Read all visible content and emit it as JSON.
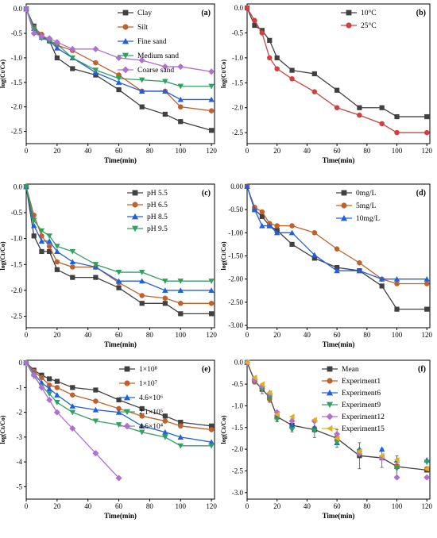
{
  "chart_data": [
    {
      "type": "line",
      "panel_label": "(a)",
      "xlabel": "Time(min)",
      "ylabel": "log(Ct/Co)",
      "xlim": [
        0,
        122
      ],
      "ylim": [
        -2.75,
        0.1
      ],
      "xticks": [
        "0",
        "20",
        "40",
        "60",
        "80",
        "100",
        "120"
      ],
      "yticks": [
        "0.0",
        "-0.5",
        "-1.0",
        "-1.5",
        "-2.0",
        "-2.5"
      ],
      "legend": "top-right",
      "x": [
        0,
        5,
        10,
        15,
        20,
        30,
        45,
        60,
        75,
        90,
        100,
        120
      ],
      "series": [
        {
          "name": "Clay",
          "color": "#404040",
          "marker": "square",
          "values": [
            0,
            -0.35,
            -0.55,
            -0.65,
            -1.0,
            -1.22,
            -1.35,
            -1.65,
            -2.0,
            -2.15,
            -2.3,
            -2.48
          ]
        },
        {
          "name": "Silt",
          "color": "#c0602a",
          "marker": "circle",
          "values": [
            0,
            -0.38,
            -0.52,
            -0.66,
            -0.74,
            -0.85,
            -1.1,
            -1.35,
            -1.68,
            -1.68,
            -2.0,
            -2.08
          ]
        },
        {
          "name": "Fine sand",
          "color": "#2060e0",
          "marker": "triangle",
          "values": [
            0,
            -0.4,
            -0.58,
            -0.65,
            -0.8,
            -1.0,
            -1.3,
            -1.5,
            -1.68,
            -1.68,
            -1.85,
            -1.85
          ]
        },
        {
          "name": "Medium sand",
          "color": "#30a060",
          "marker": "triangle-down",
          "values": [
            0,
            -0.42,
            -0.6,
            -0.65,
            -0.72,
            -1.0,
            -1.25,
            -1.42,
            -1.45,
            -1.48,
            -1.58,
            -1.58
          ]
        },
        {
          "name": "Coarse sand",
          "color": "#b070d0",
          "marker": "diamond",
          "values": [
            0,
            -0.5,
            -0.56,
            -0.6,
            -0.68,
            -0.82,
            -0.82,
            -1.0,
            -1.05,
            -1.18,
            -1.18,
            -1.28
          ]
        }
      ]
    },
    {
      "type": "line",
      "panel_label": "(b)",
      "xlabel": "Time(min)",
      "ylabel": "log(Ct/Co)",
      "xlim": [
        0,
        122
      ],
      "ylim": [
        -2.72,
        0.08
      ],
      "xticks": [
        "0",
        "20",
        "40",
        "60",
        "80",
        "100",
        "120"
      ],
      "yticks": [
        "0.0",
        "-0.5",
        "-1.0",
        "-1.5",
        "-2.0",
        "-2.5"
      ],
      "legend": "top-right",
      "x": [
        0,
        5,
        10,
        15,
        20,
        30,
        45,
        60,
        75,
        90,
        100,
        120
      ],
      "series": [
        {
          "name": "10°C",
          "color": "#404040",
          "marker": "square",
          "values": [
            0,
            -0.35,
            -0.45,
            -0.65,
            -1.0,
            -1.25,
            -1.32,
            -1.65,
            -2.0,
            -2.0,
            -2.18,
            -2.18
          ]
        },
        {
          "name": "25°C",
          "color": "#d04040",
          "marker": "circle",
          "values": [
            0,
            -0.25,
            -0.5,
            -1.0,
            -1.22,
            -1.42,
            -1.68,
            -2.0,
            -2.15,
            -2.32,
            -2.5,
            -2.5
          ]
        }
      ]
    },
    {
      "type": "line",
      "panel_label": "(c)",
      "xlabel": "Time(min)",
      "ylabel": "log(Ct/Co)",
      "xlim": [
        0,
        122
      ],
      "ylim": [
        -2.72,
        0.05
      ],
      "xticks": [
        "0",
        "20",
        "40",
        "60",
        "80",
        "100",
        "120"
      ],
      "yticks": [
        "0.0",
        "-0.5",
        "-1.0",
        "-1.5",
        "-2.0",
        "-2.5"
      ],
      "legend": "top-right",
      "x": [
        0,
        5,
        10,
        15,
        20,
        30,
        45,
        60,
        75,
        90,
        100,
        120
      ],
      "series": [
        {
          "name": "pH 5.5",
          "color": "#404040",
          "marker": "square",
          "values": [
            0,
            -0.95,
            -1.25,
            -1.25,
            -1.6,
            -1.75,
            -1.75,
            -1.95,
            -2.25,
            -2.25,
            -2.45,
            -2.45
          ]
        },
        {
          "name": "pH 6.5",
          "color": "#c0602a",
          "marker": "circle",
          "values": [
            0,
            -0.55,
            -0.95,
            -1.15,
            -1.45,
            -1.55,
            -1.55,
            -1.85,
            -2.1,
            -2.15,
            -2.25,
            -2.25
          ]
        },
        {
          "name": "pH 8.5",
          "color": "#2060e0",
          "marker": "triangle",
          "values": [
            0,
            -0.75,
            -1.05,
            -1.05,
            -1.25,
            -1.45,
            -1.55,
            -1.82,
            -1.82,
            -2.0,
            -2.0,
            -2.0
          ]
        },
        {
          "name": "pH 9.5",
          "color": "#30a060",
          "marker": "triangle-down",
          "values": [
            0,
            -0.65,
            -0.85,
            -0.95,
            -1.15,
            -1.25,
            -1.5,
            -1.65,
            -1.65,
            -1.82,
            -1.82,
            -1.82
          ]
        }
      ]
    },
    {
      "type": "line",
      "panel_label": "(d)",
      "xlabel": "Time(min)",
      "ylabel": "log(Ct/Co)",
      "xlim": [
        0,
        122
      ],
      "ylim": [
        -3.05,
        0.05
      ],
      "xticks": [
        "0",
        "20",
        "40",
        "60",
        "80",
        "100",
        "120"
      ],
      "yticks": [
        "0.00",
        "-0.50",
        "-1.00",
        "-1.50",
        "-2.00",
        "-2.50",
        "-3.00"
      ],
      "legend": "top-right",
      "x": [
        0,
        5,
        10,
        15,
        20,
        30,
        45,
        60,
        75,
        90,
        100,
        120
      ],
      "series": [
        {
          "name": "0mg/L",
          "color": "#404040",
          "marker": "square",
          "values": [
            0,
            -0.5,
            -0.65,
            -0.85,
            -0.95,
            -1.25,
            -1.55,
            -1.75,
            -1.82,
            -2.15,
            -2.65,
            -2.65
          ]
        },
        {
          "name": "5mg/L",
          "color": "#c0602a",
          "marker": "circle",
          "values": [
            0,
            -0.45,
            -0.55,
            -0.8,
            -0.85,
            -0.85,
            -1.0,
            -1.35,
            -1.65,
            -2.0,
            -2.1,
            -2.1
          ]
        },
        {
          "name": "10mg/L",
          "color": "#2060e0",
          "marker": "triangle",
          "values": [
            0,
            -0.5,
            -0.85,
            -0.85,
            -1.0,
            -1.0,
            -1.48,
            -1.82,
            -1.82,
            -2.0,
            -2.0,
            -2.0
          ]
        }
      ]
    },
    {
      "type": "line",
      "panel_label": "(e)",
      "xlabel": "Time(min)",
      "ylabel": "log(Ct/Co)",
      "xlim": [
        0,
        122
      ],
      "ylim": [
        -5.5,
        0.1
      ],
      "xticks": [
        "0",
        "20",
        "40",
        "60",
        "80",
        "100",
        "120"
      ],
      "yticks": [
        "0",
        "-1",
        "-2",
        "-3",
        "-4",
        "-5"
      ],
      "legend": "top-right",
      "x": [
        0,
        5,
        10,
        15,
        20,
        30,
        45,
        60,
        75,
        90,
        100,
        120
      ],
      "series": [
        {
          "name": "1×10⁸",
          "color": "#404040",
          "marker": "square",
          "values": [
            0,
            -0.3,
            -0.5,
            -0.65,
            -0.75,
            -1.0,
            -1.1,
            -1.5,
            -1.85,
            -2.15,
            -2.4,
            -2.55
          ]
        },
        {
          "name": "1×10⁷",
          "color": "#c0602a",
          "marker": "circle",
          "values": [
            0,
            -0.35,
            -0.6,
            -0.9,
            -1.0,
            -1.3,
            -1.55,
            -1.85,
            -2.15,
            -2.35,
            -2.55,
            -2.7
          ]
        },
        {
          "name": "4.6×10⁶",
          "color": "#2060e0",
          "marker": "triangle",
          "values": [
            0,
            -0.45,
            -0.8,
            -1.05,
            -1.3,
            -1.75,
            -1.9,
            -2.0,
            -2.55,
            -2.8,
            -3.0,
            -3.2
          ]
        },
        {
          "name": "2.1×10⁵",
          "color": "#30a060",
          "marker": "triangle-down",
          "values": [
            0,
            -0.55,
            -0.95,
            -1.25,
            -1.6,
            -2.0,
            -2.35,
            -2.5,
            -2.8,
            -3.0,
            -3.35,
            -3.35
          ]
        },
        {
          "name": "4.6×10⁴",
          "color": "#b070d0",
          "marker": "diamond",
          "values": [
            0,
            -0.5,
            -1.0,
            -1.5,
            -2.0,
            -2.65,
            -3.65,
            -4.65,
            null,
            null,
            null,
            null
          ]
        }
      ]
    },
    {
      "type": "scatter",
      "panel_label": "(f)",
      "xlabel": "Time(min)",
      "ylabel": "log(Ct/Co)",
      "xlim": [
        0,
        122
      ],
      "ylim": [
        -3.15,
        0.05
      ],
      "xticks": [
        "0",
        "20",
        "40",
        "60",
        "80",
        "100",
        "120"
      ],
      "yticks": [
        "0.0",
        "-0.5",
        "-1.0",
        "-1.5",
        "-2.0",
        "-2.5",
        "-3.0"
      ],
      "legend": "top-right",
      "x": [
        0,
        5,
        10,
        15,
        20,
        30,
        45,
        60,
        75,
        90,
        100,
        120
      ],
      "series": [
        {
          "name": "Mean",
          "color": "#404040",
          "marker": "square",
          "line": true,
          "error": [
            0,
            0.08,
            0.1,
            0.12,
            0.12,
            0.15,
            0.18,
            0.2,
            0.3,
            0.22,
            0.25,
            0.05
          ],
          "values": [
            0,
            -0.42,
            -0.62,
            -0.8,
            -1.25,
            -1.45,
            -1.55,
            -1.75,
            -2.15,
            -2.2,
            -2.4,
            -2.48
          ]
        },
        {
          "name": "Experiment1",
          "color": "#c0602a",
          "marker": "circle",
          "values": [
            0,
            -0.45,
            -0.6,
            -0.85,
            -1.25,
            -1.5,
            -1.52,
            -1.75,
            -2.05,
            -2.2,
            -2.38,
            -2.45
          ]
        },
        {
          "name": "Experiment6",
          "color": "#2060e0",
          "marker": "triangle",
          "values": [
            0,
            -0.38,
            -0.55,
            -0.7,
            -1.25,
            -1.45,
            -1.5,
            -1.85,
            -2.0,
            -2.0,
            -2.25,
            -2.25
          ]
        },
        {
          "name": "Experiment9",
          "color": "#30a060",
          "marker": "triangle-down",
          "values": [
            0,
            -0.42,
            -0.62,
            -0.82,
            -1.32,
            -1.55,
            -1.58,
            -1.85,
            -2.05,
            -2.2,
            -2.45,
            -2.3
          ]
        },
        {
          "name": "Experiment12",
          "color": "#b070d0",
          "marker": "diamond",
          "values": [
            0,
            -0.4,
            -0.55,
            -0.72,
            -1.15,
            -1.35,
            -1.35,
            -1.65,
            -2.1,
            -2.2,
            -2.65,
            -2.65
          ]
        },
        {
          "name": "Experiment15",
          "color": "#e0b020",
          "marker": "triangle-left",
          "values": [
            0,
            -0.35,
            -0.5,
            -0.7,
            -1.2,
            -1.25,
            -1.32,
            -1.75,
            -2.05,
            -2.15,
            -2.25,
            -2.45
          ]
        }
      ]
    }
  ]
}
